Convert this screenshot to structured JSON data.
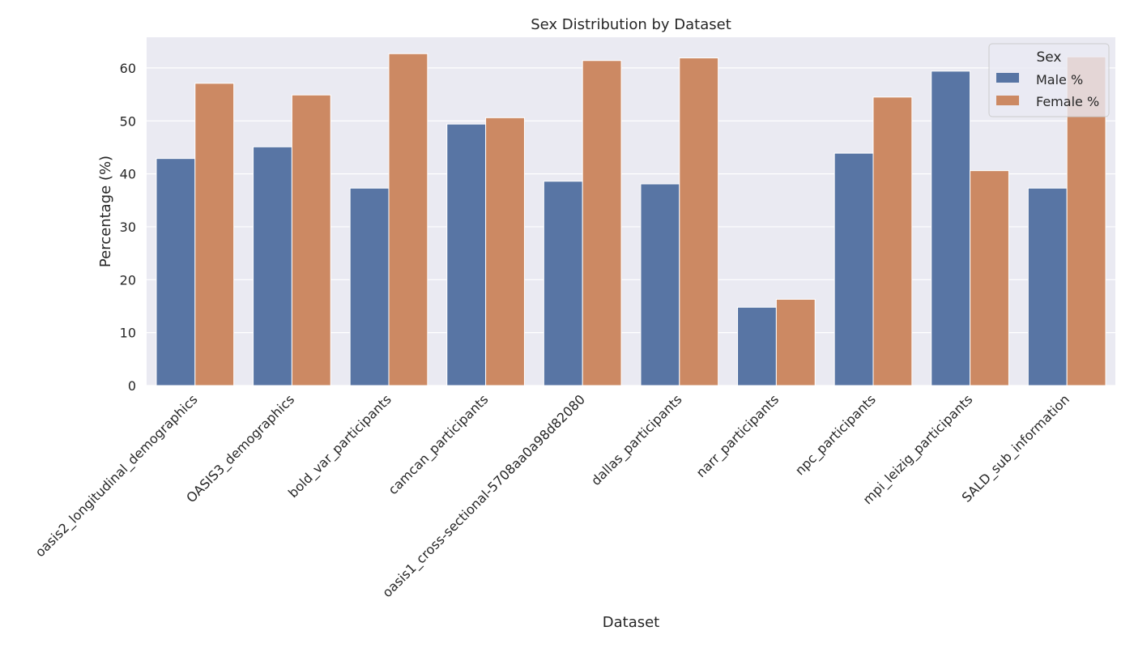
{
  "chart_data": {
    "type": "bar",
    "title": "Sex Distribution by Dataset",
    "xlabel": "Dataset",
    "ylabel": "Percentage (%)",
    "ylim": [
      0,
      65.8
    ],
    "yticks": [
      0,
      10,
      20,
      30,
      40,
      50,
      60
    ],
    "grid": true,
    "legend": {
      "title": "Sex",
      "placement": "top-right"
    },
    "categories": [
      "oasis2_longitudinal_demographics",
      "OASIS3_demographics",
      "bold_var_participants",
      "camcan_participants",
      "oasis1_cross-sectional-5708aa0a98d82080",
      "dallas_participants",
      "narr_participants",
      "npc_participants",
      "mpi_leizig_participants",
      "SALD_sub_information"
    ],
    "series": [
      {
        "name": "Male %",
        "color": "#5875a4",
        "values": [
          42.9,
          45.1,
          37.3,
          49.4,
          38.6,
          38.1,
          14.8,
          43.9,
          59.4,
          37.3
        ]
      },
      {
        "name": "Female %",
        "color": "#cc8963",
        "values": [
          57.1,
          54.9,
          62.7,
          50.6,
          61.4,
          61.9,
          16.3,
          54.5,
          40.6,
          62.1
        ]
      }
    ]
  }
}
